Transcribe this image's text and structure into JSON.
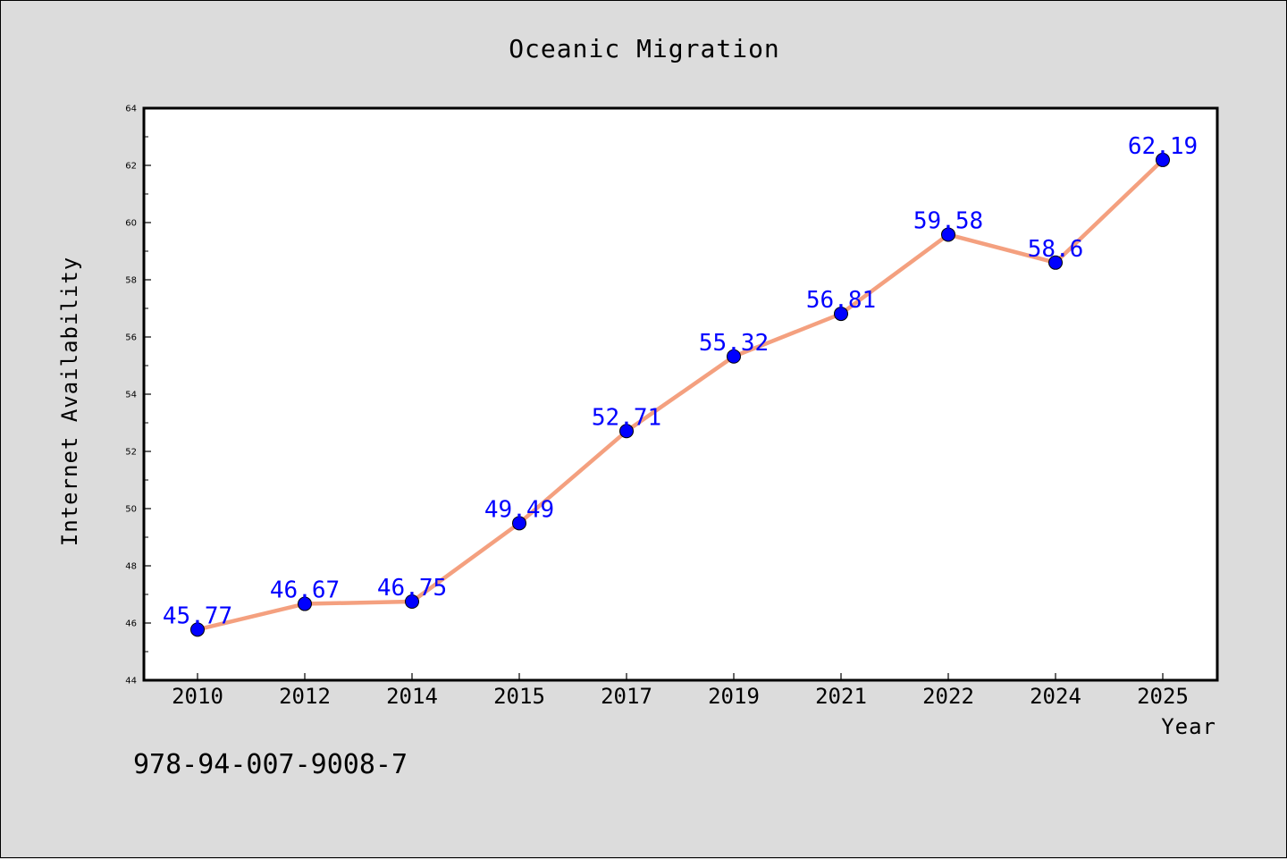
{
  "chart_data": {
    "type": "line",
    "title": "Oceanic Migration",
    "xlabel": "Year",
    "ylabel": "Internet Availability",
    "categories": [
      "2010",
      "2012",
      "2014",
      "2015",
      "2017",
      "2019",
      "2021",
      "2022",
      "2024",
      "2025"
    ],
    "series": [
      {
        "values": [
          45.77,
          46.67,
          46.75,
          49.49,
          52.71,
          55.32,
          56.81,
          59.58,
          58.6,
          62.19
        ],
        "data_labels": [
          "45.77",
          "46.67",
          "46.75",
          "49.49",
          "52.71",
          "55.32",
          "56.81",
          "59.58",
          "58.6",
          "62.19"
        ]
      }
    ],
    "ylim": [
      44,
      64
    ],
    "yticks": [
      "44",
      "46",
      "48",
      "50",
      "52",
      "54",
      "56",
      "58",
      "60",
      "62",
      "64"
    ],
    "grid": false,
    "colors": {
      "line": "#f4a07f",
      "marker": "#0000ff",
      "label": "#0000ff",
      "background": "#dcdcdc",
      "plot_background": "#ffffff"
    }
  },
  "footnote": "978-94-007-9008-7"
}
